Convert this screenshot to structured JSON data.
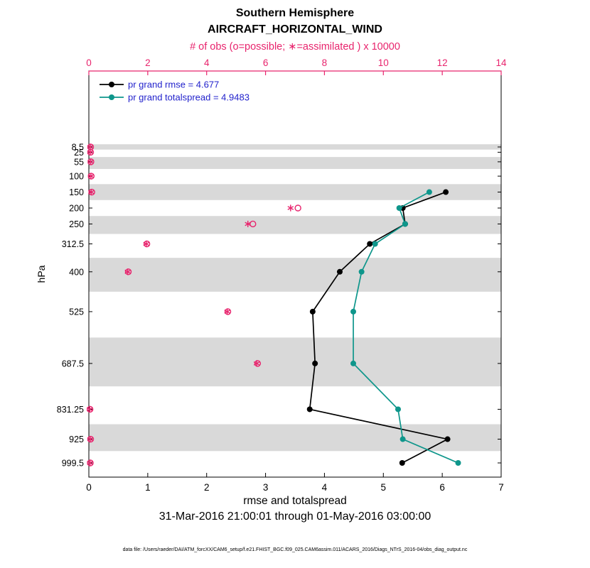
{
  "header": {
    "title_line1": "Southern Hemisphere",
    "title_line2": "AIRCRAFT_HORIZONTAL_WIND",
    "obs_axis_label": "# of obs (o=possible; ∗=assimilated ) x 10000"
  },
  "footer": {
    "xaxis_label": "rmse and totalspread",
    "time_range": "31-Mar-2016 21:00:01 through 01-May-2016 03:00:00",
    "data_file_note": "data file: /Users/raeder/DAI/ATM_forcXX/CAM6_setup/f.e21.FHIST_BGC.f09_025.CAM6assim.011/ACARS_2016/Diags_NTrS_2016-04/obs_diag_output.nc"
  },
  "chart_data": {
    "type": "line",
    "title": "Southern Hemisphere AIRCRAFT_HORIZONTAL_WIND",
    "xlabel": "rmse and totalspread",
    "x2label": "# of obs (o=possible; ∗=assimilated ) x 10000",
    "ylabel": "hPa",
    "y_axis_direction": "pressure increases downward, linear",
    "x_range": [
      0,
      7
    ],
    "x_ticks": [
      0,
      1,
      2,
      3,
      4,
      5,
      6,
      7
    ],
    "x2_range": [
      0,
      14
    ],
    "x2_ticks": [
      0,
      2,
      4,
      6,
      8,
      10,
      12,
      14
    ],
    "levels": [
      8.5,
      25,
      55,
      100,
      150,
      200,
      250,
      312.5,
      400,
      525,
      687.5,
      831.25,
      925,
      999.5
    ],
    "shaded_levels": [
      8.5,
      55,
      150,
      250,
      400,
      687.5,
      925
    ],
    "legend_position": "top-left",
    "series": [
      {
        "name": "pr grand rmse = 4.677",
        "color": "#000000",
        "levels": [
          150,
          200,
          250,
          312.5,
          400,
          525,
          687.5,
          831.25,
          925,
          999.5
        ],
        "values": [
          6.06,
          5.33,
          5.37,
          4.77,
          4.26,
          3.8,
          3.84,
          3.75,
          6.09,
          5.32
        ]
      },
      {
        "name": "pr grand totalspread = 4.9483",
        "color": "#0e968b",
        "levels": [
          150,
          200,
          250,
          312.5,
          400,
          525,
          687.5,
          831.25,
          925,
          999.5
        ],
        "values": [
          5.78,
          5.27,
          5.37,
          4.86,
          4.63,
          4.49,
          4.49,
          5.25,
          5.33,
          6.27
        ]
      }
    ],
    "obs_counts": {
      "color": "#e8246d",
      "units": "x 10000",
      "levels": [
        8.5,
        25,
        55,
        100,
        150,
        200,
        250,
        312.5,
        400,
        525,
        687.5,
        831.25,
        925,
        999.5
      ],
      "possible": [
        0.06,
        0.06,
        0.07,
        0.08,
        0.1,
        7.1,
        5.57,
        1.97,
        1.34,
        4.72,
        5.73,
        0.04,
        0.06,
        0.05
      ],
      "assimilated": [
        0.05,
        0.05,
        0.06,
        0.07,
        0.08,
        6.85,
        5.4,
        1.95,
        1.32,
        4.7,
        5.7,
        0.03,
        0.05,
        0.04
      ]
    },
    "colors": {
      "band": "#d9d9d9",
      "legend_text": "#2222cc",
      "axis": "#000000",
      "obs_axis": "#e8246d"
    }
  }
}
